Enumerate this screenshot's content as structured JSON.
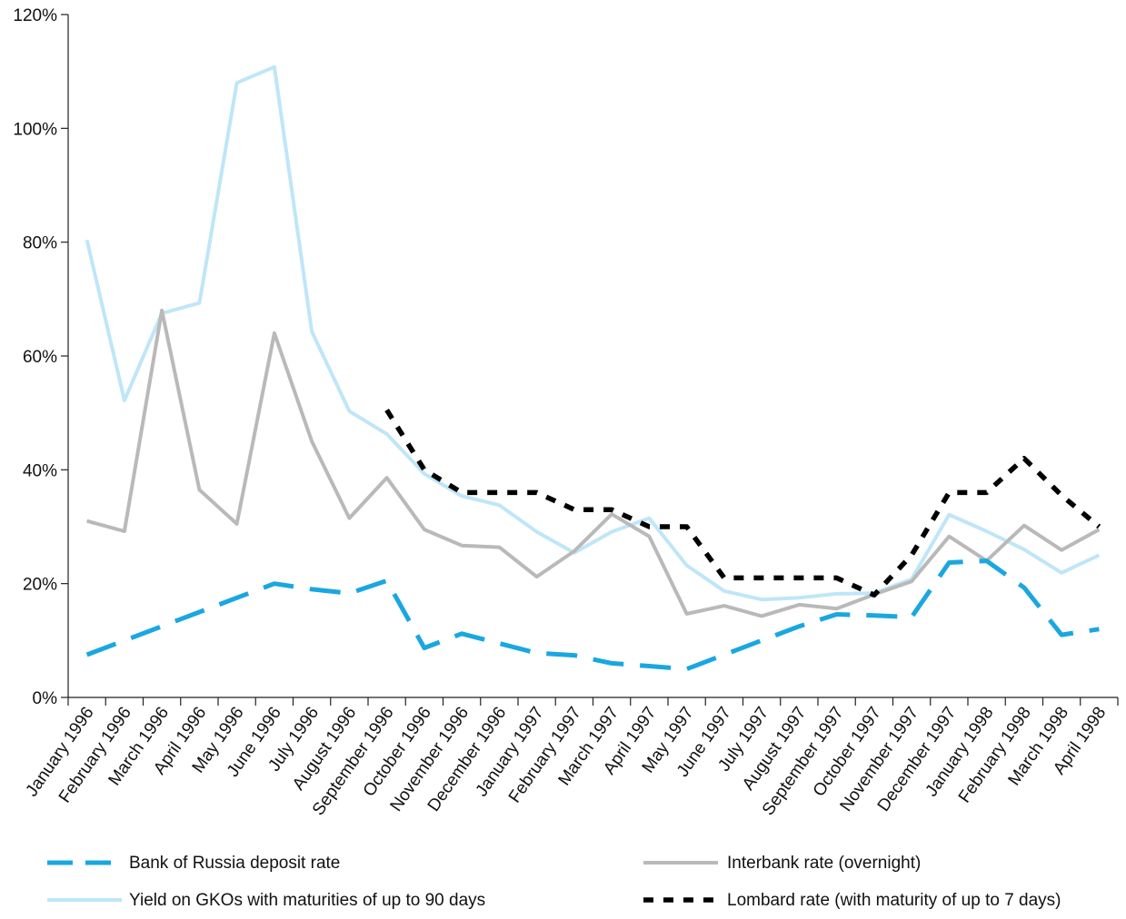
{
  "chart_data": {
    "type": "line",
    "title": "",
    "xlabel": "",
    "ylabel": "",
    "ylim": [
      0,
      120
    ],
    "yticks": [
      "0%",
      "20%",
      "40%",
      "60%",
      "80%",
      "100%",
      "120%"
    ],
    "grid": false,
    "legend_position": "bottom",
    "categories": [
      "January 1996",
      "February 1996",
      "March 1996",
      "April 1996",
      "May 1996",
      "June 1996",
      "July 1996",
      "August 1996",
      "September 1996",
      "October 1996",
      "November 1996",
      "December 1996",
      "January 1997",
      "February 1997",
      "March 1997",
      "April 1997",
      "May 1997",
      "June 1997",
      "July 1997",
      "August 1997",
      "September 1997",
      "October 1997",
      "November 1997",
      "December 1997",
      "January 1998",
      "February 1998",
      "March 1998",
      "April 1998"
    ],
    "series": [
      {
        "name": "Bank of Russia deposit rate",
        "color": "#1aa7e0",
        "dash": "long-dash",
        "values": [
          7.5,
          10,
          12.5,
          15,
          17.5,
          20,
          19,
          18.3,
          20.5,
          8.7,
          11.2,
          9.5,
          7.8,
          7.4,
          6,
          5.5,
          5,
          7.5,
          10,
          12.5,
          14.6,
          14.4,
          14.1,
          23.7,
          24,
          19.3,
          11,
          12
        ]
      },
      {
        "name": "Interbank rate (overnight)",
        "color": "#b9b9b9",
        "dash": "solid",
        "values": [
          31,
          29.2,
          68,
          36.5,
          30.5,
          64,
          45,
          31.5,
          38.6,
          29.5,
          26.7,
          26.4,
          21.2,
          25.7,
          32.2,
          28.3,
          14.7,
          16.1,
          14.3,
          16.3,
          15.6,
          18.1,
          20.4,
          28.3,
          24,
          30.2,
          25.9,
          29.5
        ]
      },
      {
        "name": "Yield on GKOs with maturities of up to 90 days",
        "color": "#bfe6f8",
        "dash": "solid",
        "values": [
          80.4,
          52.2,
          67.5,
          69.3,
          108,
          110.8,
          64.3,
          50.3,
          46.3,
          39.3,
          35.4,
          33.8,
          29.1,
          25.4,
          29.1,
          31.5,
          23.2,
          18.7,
          17.2,
          17.5,
          18.2,
          18.3,
          20.8,
          32.1,
          29.2,
          26,
          21.9,
          25
        ]
      },
      {
        "name": "Lombard rate (with maturity of up to 7 days)",
        "color": "#000000",
        "dash": "short-dash",
        "values": [
          null,
          null,
          null,
          null,
          null,
          null,
          null,
          null,
          50.5,
          40,
          36,
          36,
          36,
          33,
          33,
          30,
          30,
          21,
          21,
          21,
          21,
          18,
          25,
          36,
          36,
          42,
          35.5,
          30
        ]
      }
    ]
  }
}
